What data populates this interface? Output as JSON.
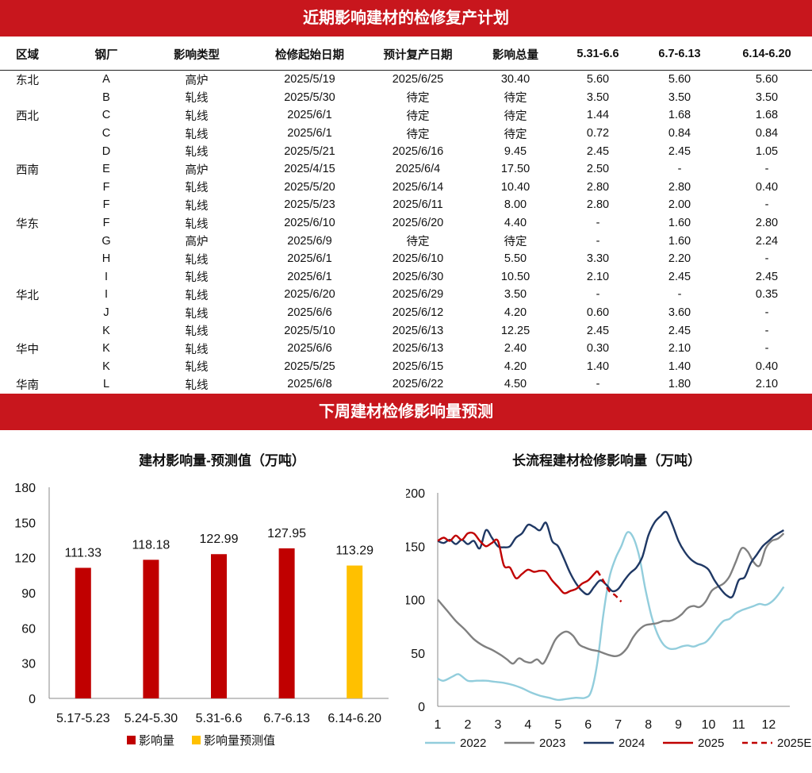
{
  "banners": {
    "top": "近期影响建材的检修复产计划",
    "middle": "下周建材检修影响量预测"
  },
  "table": {
    "headers": [
      "区域",
      "钢厂",
      "影响类型",
      "检修起始日期",
      "预计复产日期",
      "影响总量",
      "5.31-6.6",
      "6.7-6.13",
      "6.14-6.20"
    ],
    "rows": [
      [
        "东北",
        "A",
        "高炉",
        "2025/5/19",
        "2025/6/25",
        "30.40",
        "5.60",
        "5.60",
        "5.60"
      ],
      [
        "",
        "B",
        "轧线",
        "2025/5/30",
        "待定",
        "待定",
        "3.50",
        "3.50",
        "3.50"
      ],
      [
        "西北",
        "C",
        "轧线",
        "2025/6/1",
        "待定",
        "待定",
        "1.44",
        "1.68",
        "1.68"
      ],
      [
        "",
        "C",
        "轧线",
        "2025/6/1",
        "待定",
        "待定",
        "0.72",
        "0.84",
        "0.84"
      ],
      [
        "",
        "D",
        "轧线",
        "2025/5/21",
        "2025/6/16",
        "9.45",
        "2.45",
        "2.45",
        "1.05"
      ],
      [
        "西南",
        "E",
        "高炉",
        "2025/4/15",
        "2025/6/4",
        "17.50",
        "2.50",
        "-",
        "-"
      ],
      [
        "",
        "F",
        "轧线",
        "2025/5/20",
        "2025/6/14",
        "10.40",
        "2.80",
        "2.80",
        "0.40"
      ],
      [
        "",
        "F",
        "轧线",
        "2025/5/23",
        "2025/6/11",
        "8.00",
        "2.80",
        "2.00",
        "-"
      ],
      [
        "华东",
        "F",
        "轧线",
        "2025/6/10",
        "2025/6/20",
        "4.40",
        "-",
        "1.60",
        "2.80"
      ],
      [
        "",
        "G",
        "高炉",
        "2025/6/9",
        "待定",
        "待定",
        "-",
        "1.60",
        "2.24"
      ],
      [
        "",
        "H",
        "轧线",
        "2025/6/1",
        "2025/6/10",
        "5.50",
        "3.30",
        "2.20",
        "-"
      ],
      [
        "",
        "I",
        "轧线",
        "2025/6/1",
        "2025/6/30",
        "10.50",
        "2.10",
        "2.45",
        "2.45"
      ],
      [
        "华北",
        "I",
        "轧线",
        "2025/6/20",
        "2025/6/29",
        "3.50",
        "-",
        "-",
        "0.35"
      ],
      [
        "",
        "J",
        "轧线",
        "2025/6/6",
        "2025/6/12",
        "4.20",
        "0.60",
        "3.60",
        "-"
      ],
      [
        "",
        "K",
        "轧线",
        "2025/5/10",
        "2025/6/13",
        "12.25",
        "2.45",
        "2.45",
        "-"
      ],
      [
        "华中",
        "K",
        "轧线",
        "2025/6/6",
        "2025/6/13",
        "2.40",
        "0.30",
        "2.10",
        "-"
      ],
      [
        "",
        "K",
        "轧线",
        "2025/5/25",
        "2025/6/15",
        "4.20",
        "1.40",
        "1.40",
        "0.40"
      ],
      [
        "华南",
        "L",
        "轧线",
        "2025/6/8",
        "2025/6/22",
        "4.50",
        "-",
        "1.80",
        "2.10"
      ]
    ]
  },
  "chart_data": [
    {
      "type": "bar",
      "title": "建材影响量-预测值（万吨）",
      "categories": [
        "5.17-5.23",
        "5.24-5.30",
        "5.31-6.6",
        "6.7-6.13",
        "6.14-6.20"
      ],
      "values": [
        111.33,
        118.18,
        122.99,
        127.95,
        113.29
      ],
      "value_labels": [
        "111.33",
        "118.18",
        "122.99",
        "127.95",
        "113.29"
      ],
      "bar_series": [
        0,
        0,
        0,
        0,
        1
      ],
      "series": [
        {
          "name": "影响量",
          "color": "#c00000"
        },
        {
          "name": "影响量预测值",
          "color": "#ffc000"
        }
      ],
      "ylim": [
        0,
        180
      ],
      "yticks": [
        0,
        30,
        60,
        90,
        120,
        150,
        180
      ],
      "legend": "bottom",
      "grid": false
    },
    {
      "type": "line",
      "title": "长流程建材检修影响量（万吨）",
      "xlim": [
        1,
        12.7
      ],
      "xticks": [
        1,
        2,
        3,
        4,
        5,
        6,
        7,
        8,
        9,
        10,
        11,
        12
      ],
      "ylim": [
        0,
        200
      ],
      "yticks": [
        0,
        50,
        100,
        150,
        200
      ],
      "legend": "bottom",
      "grid": false,
      "series": [
        {
          "name": "2022",
          "color": "#92cddc",
          "dash": false,
          "x": [
            1.0,
            1.2,
            1.5,
            1.7,
            2.0,
            2.3,
            2.6,
            2.9,
            3.2,
            3.5,
            3.8,
            4.1,
            4.4,
            4.7,
            5.0,
            5.3,
            5.6,
            5.9,
            6.1,
            6.3,
            6.5,
            6.7,
            6.9,
            7.1,
            7.3,
            7.5,
            7.7,
            7.9,
            8.1,
            8.3,
            8.5,
            8.7,
            8.9,
            9.1,
            9.3,
            9.5,
            9.7,
            9.9,
            10.1,
            10.3,
            10.5,
            10.7,
            10.9,
            11.1,
            11.3,
            11.5,
            11.7,
            11.9,
            12.1,
            12.3,
            12.5
          ],
          "y": [
            26,
            24,
            28,
            30,
            24,
            24,
            24,
            23,
            22,
            20,
            17,
            13,
            10,
            8,
            6,
            7,
            8,
            8,
            14,
            40,
            85,
            120,
            138,
            150,
            163,
            158,
            140,
            110,
            85,
            68,
            58,
            54,
            54,
            56,
            57,
            56,
            58,
            60,
            66,
            74,
            80,
            82,
            87,
            90,
            92,
            94,
            96,
            95,
            98,
            104,
            112
          ]
        },
        {
          "name": "2023",
          "color": "#808080",
          "dash": false,
          "x": [
            1.0,
            1.3,
            1.6,
            1.9,
            2.2,
            2.5,
            2.8,
            3.1,
            3.3,
            3.5,
            3.7,
            3.9,
            4.1,
            4.3,
            4.5,
            4.7,
            4.9,
            5.1,
            5.3,
            5.5,
            5.7,
            5.9,
            6.1,
            6.3,
            6.5,
            6.7,
            6.9,
            7.1,
            7.3,
            7.5,
            7.7,
            7.9,
            8.1,
            8.3,
            8.5,
            8.7,
            8.9,
            9.1,
            9.3,
            9.5,
            9.7,
            9.9,
            10.1,
            10.3,
            10.5,
            10.7,
            10.9,
            11.1,
            11.3,
            11.5,
            11.7,
            11.9,
            12.1,
            12.3,
            12.5
          ],
          "y": [
            100,
            90,
            80,
            72,
            63,
            57,
            53,
            48,
            44,
            40,
            45,
            42,
            41,
            44,
            40,
            50,
            62,
            68,
            70,
            66,
            58,
            55,
            53,
            52,
            50,
            48,
            47,
            49,
            55,
            65,
            72,
            76,
            77,
            78,
            80,
            80,
            82,
            86,
            92,
            94,
            93,
            98,
            108,
            112,
            115,
            122,
            135,
            148,
            145,
            135,
            132,
            148,
            155,
            157,
            162
          ]
        },
        {
          "name": "2024",
          "color": "#1f3864",
          "dash": false,
          "x": [
            1.0,
            1.2,
            1.4,
            1.6,
            1.8,
            2.0,
            2.2,
            2.4,
            2.6,
            2.8,
            3.0,
            3.2,
            3.4,
            3.6,
            3.8,
            4.0,
            4.2,
            4.4,
            4.6,
            4.8,
            5.0,
            5.2,
            5.4,
            5.6,
            5.8,
            6.0,
            6.2,
            6.4,
            6.6,
            6.8,
            7.0,
            7.2,
            7.4,
            7.6,
            7.8,
            8.0,
            8.2,
            8.4,
            8.6,
            8.8,
            9.0,
            9.2,
            9.4,
            9.6,
            9.8,
            10.0,
            10.2,
            10.4,
            10.6,
            10.8,
            11.0,
            11.2,
            11.4,
            11.6,
            11.8,
            12.0,
            12.2,
            12.5
          ],
          "y": [
            155,
            153,
            156,
            152,
            156,
            152,
            155,
            148,
            165,
            158,
            150,
            149,
            150,
            158,
            162,
            170,
            168,
            165,
            172,
            155,
            150,
            138,
            125,
            115,
            108,
            105,
            112,
            118,
            114,
            108,
            110,
            118,
            125,
            130,
            140,
            160,
            172,
            178,
            182,
            170,
            155,
            145,
            138,
            134,
            132,
            128,
            118,
            110,
            104,
            103,
            118,
            121,
            134,
            142,
            150,
            155,
            160,
            165
          ]
        },
        {
          "name": "2025",
          "color": "#c00000",
          "dash": false,
          "x": [
            1.0,
            1.2,
            1.4,
            1.6,
            1.8,
            2.0,
            2.2,
            2.4,
            2.6,
            2.8,
            3.0,
            3.2,
            3.4,
            3.6,
            3.8,
            4.0,
            4.2,
            4.4,
            4.6,
            4.8,
            5.0,
            5.2,
            5.4,
            5.6,
            5.8,
            6.0,
            6.2,
            6.3
          ],
          "y": [
            155,
            158,
            155,
            160,
            156,
            162,
            162,
            155,
            150,
            153,
            155,
            132,
            130,
            120,
            124,
            128,
            126,
            127,
            126,
            118,
            112,
            106,
            108,
            110,
            115,
            118,
            124,
            127
          ]
        },
        {
          "name": "2025E",
          "color": "#c00000",
          "dash": true,
          "x": [
            6.3,
            6.5,
            6.7,
            6.9,
            7.1
          ],
          "y": [
            127,
            118,
            108,
            104,
            98
          ]
        }
      ]
    }
  ]
}
